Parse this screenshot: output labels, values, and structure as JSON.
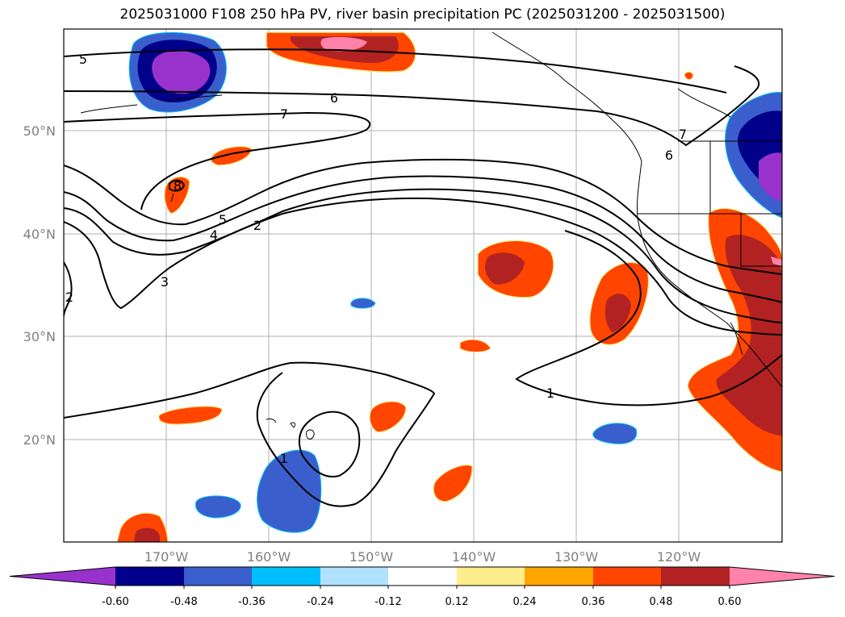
{
  "title": "2025031000 F108 250 hPa PV, river basin precipitation PC (2025031200 - 2025031500)",
  "map": {
    "lat_labels": [
      "50°N",
      "40°N",
      "30°N",
      "20°N"
    ],
    "lon_labels": [
      "170°W",
      "160°W",
      "150°W",
      "140°W",
      "130°W",
      "120°W"
    ],
    "contour_labels": [
      "5",
      "6",
      "7",
      "6",
      "7",
      "5",
      "4",
      "2",
      "3",
      "2",
      "1",
      "1",
      "8"
    ]
  },
  "colorbar": {
    "ticks": [
      "-0.60",
      "-0.48",
      "-0.36",
      "-0.24",
      "-0.12",
      "0.12",
      "0.24",
      "0.36",
      "0.48",
      "0.60"
    ],
    "colors": [
      "#9932cc",
      "#00008b",
      "#3a5fcd",
      "#00bfff",
      "#b0e2ff",
      "#ffffff",
      "#ffec8b",
      "#ffa500",
      "#ff4500",
      "#b22222",
      "#ff82ab"
    ]
  }
}
